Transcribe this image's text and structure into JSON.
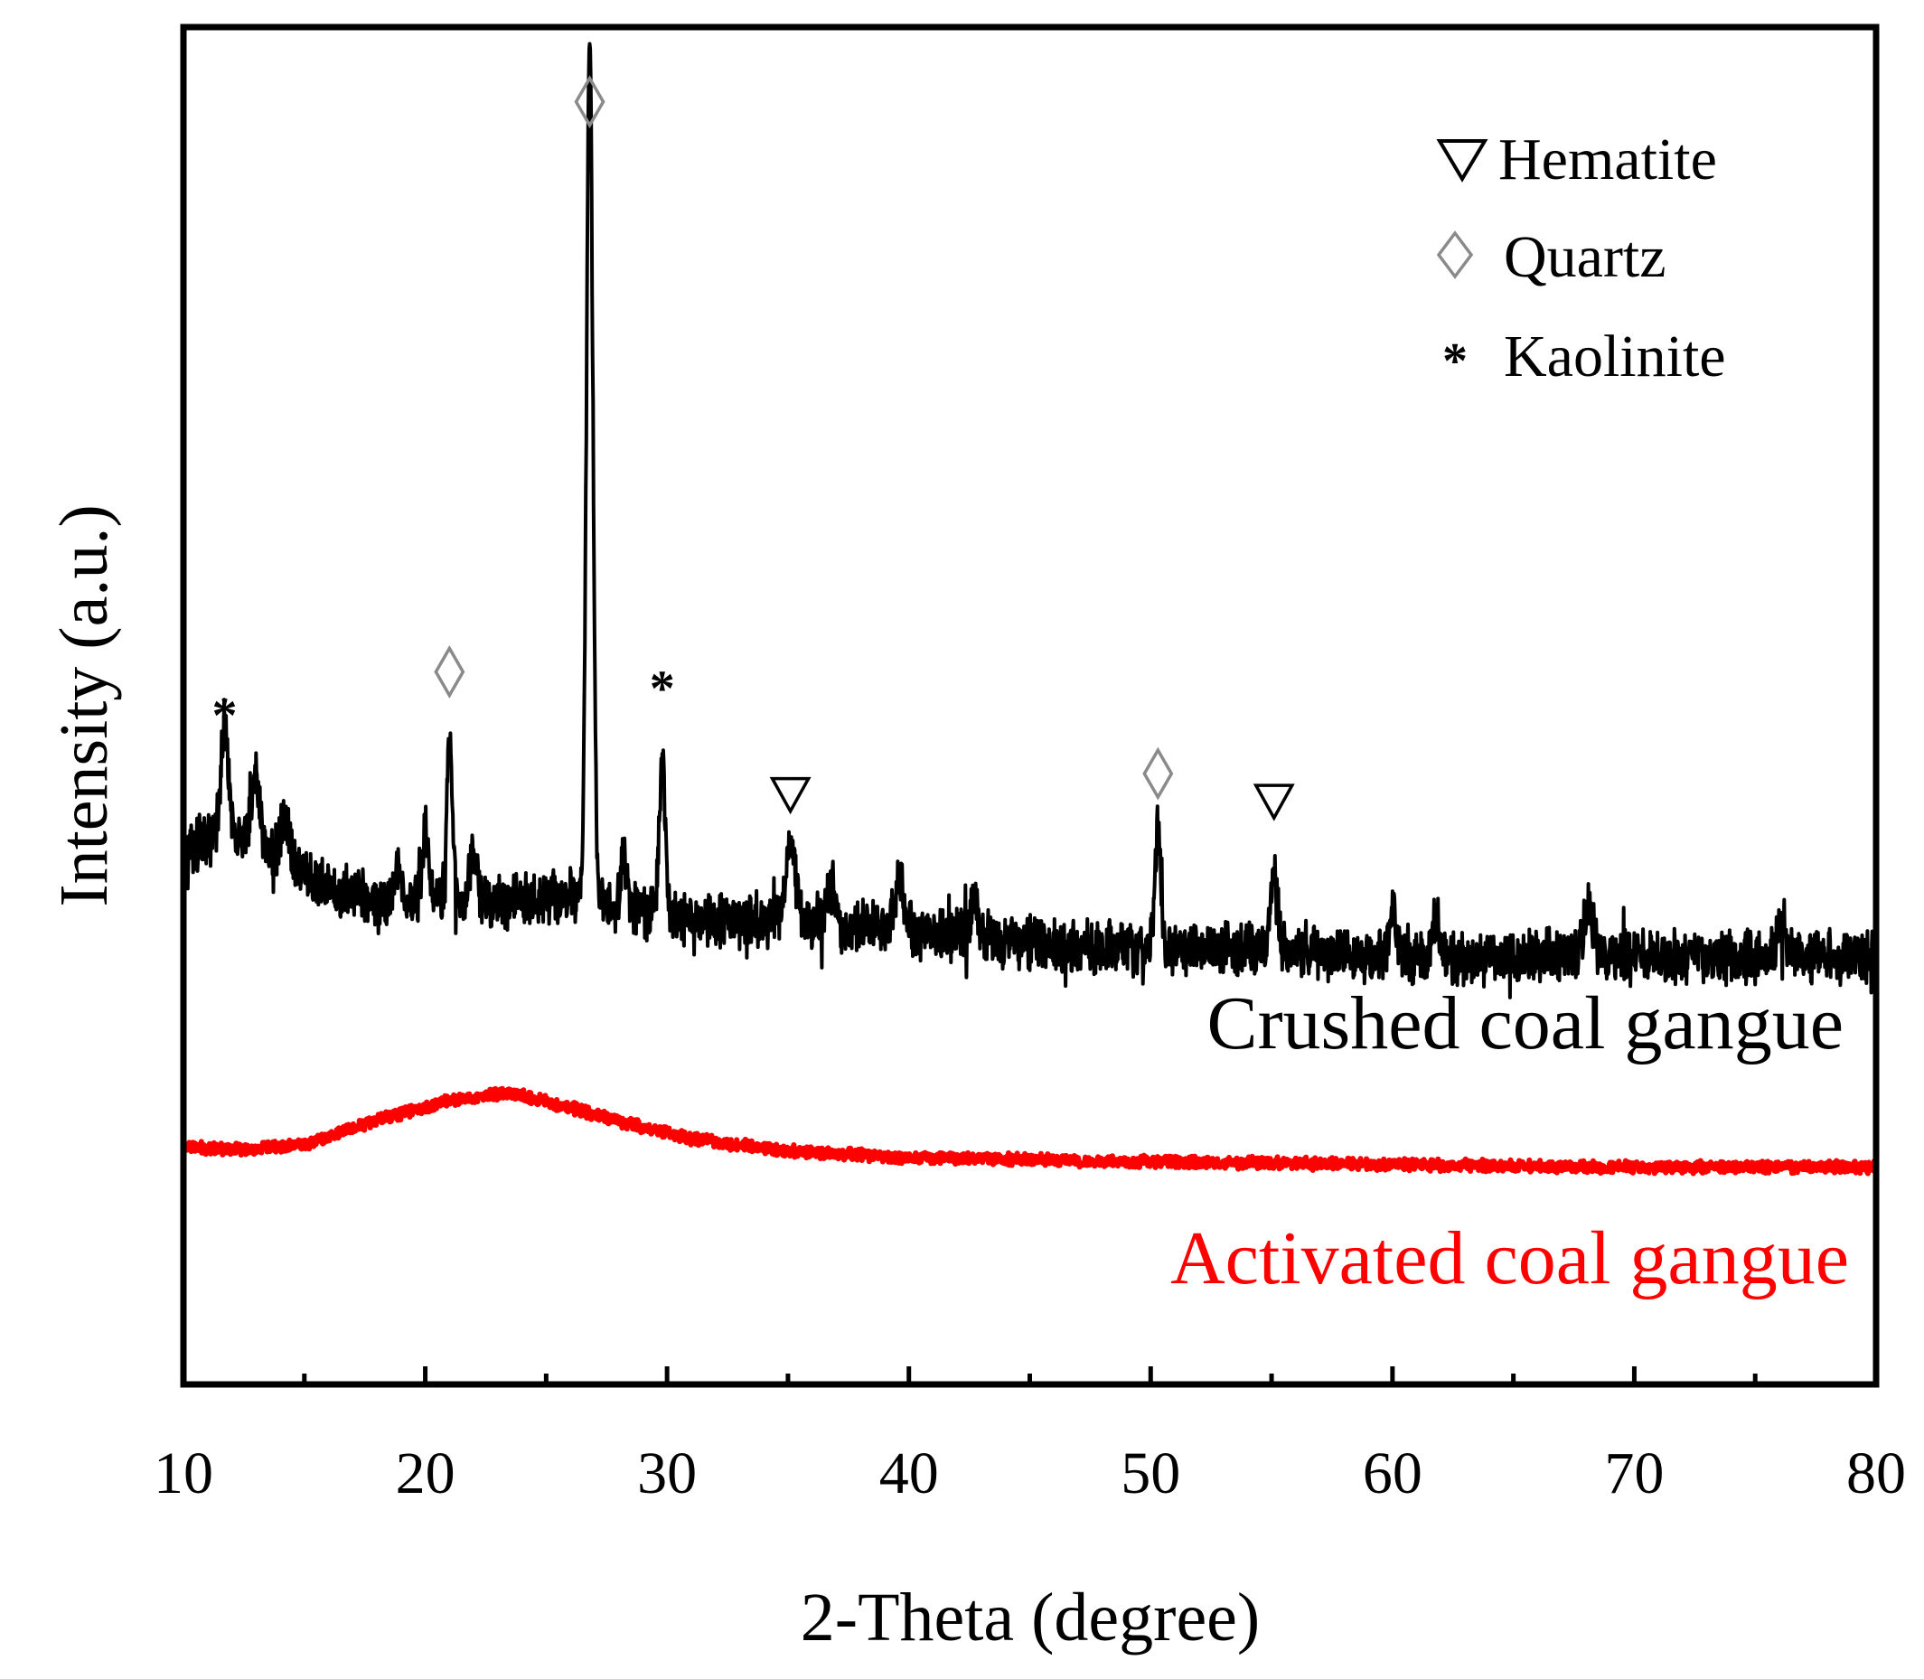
{
  "chart_data": {
    "type": "line",
    "title": "",
    "xlabel": "2-Theta (degree)",
    "ylabel": "Intensity (a.u.)",
    "xlim": [
      10,
      80
    ],
    "ylim": [
      0,
      100
    ],
    "xticks": [
      10,
      20,
      30,
      40,
      50,
      60,
      70,
      80
    ],
    "yticks": [],
    "grid": false,
    "legend_position": "top-right",
    "legend": [
      {
        "symbol": "hematite",
        "label": "Hematite"
      },
      {
        "symbol": "quartz",
        "label": "Quartz"
      },
      {
        "symbol": "kaolinite",
        "label": "Kaolinite"
      }
    ],
    "series": [
      {
        "name": "Crushed coal gangue",
        "label": "Crushed coal gangue",
        "color": "#000000",
        "baseline": [
          [
            10,
            39.5
          ],
          [
            12,
            40.5
          ],
          [
            14,
            38.5
          ],
          [
            16,
            36.5
          ],
          [
            18,
            35.5
          ],
          [
            22,
            35.5
          ],
          [
            26,
            36
          ],
          [
            30,
            34.5
          ],
          [
            35,
            34
          ],
          [
            40,
            33.5
          ],
          [
            45,
            32.5
          ],
          [
            50,
            32
          ],
          [
            55,
            32
          ],
          [
            60,
            31.5
          ],
          [
            70,
            31.5
          ],
          [
            80,
            31.5
          ]
        ],
        "noise_amplitude": 1.6,
        "peaks": [
          {
            "x": 11.7,
            "height": 8.5,
            "width": 0.15
          },
          {
            "x": 13.0,
            "height": 5.0,
            "width": 0.18
          },
          {
            "x": 14.2,
            "height": 3.5,
            "width": 0.2
          },
          {
            "x": 18.9,
            "height": 3.0,
            "width": 0.12
          },
          {
            "x": 20.0,
            "height": 5.0,
            "width": 0.12
          },
          {
            "x": 21.0,
            "height": 11.5,
            "width": 0.12
          },
          {
            "x": 22.0,
            "height": 4.0,
            "width": 0.15
          },
          {
            "x": 26.8,
            "height": 63.0,
            "width": 0.13
          },
          {
            "x": 28.2,
            "height": 4.0,
            "width": 0.12
          },
          {
            "x": 29.8,
            "height": 12.0,
            "width": 0.12
          },
          {
            "x": 35.1,
            "height": 6.0,
            "width": 0.2
          },
          {
            "x": 36.8,
            "height": 3.5,
            "width": 0.15
          },
          {
            "x": 39.6,
            "height": 3.5,
            "width": 0.2
          },
          {
            "x": 42.7,
            "height": 2.5,
            "width": 0.15
          },
          {
            "x": 50.3,
            "height": 9.0,
            "width": 0.12
          },
          {
            "x": 55.1,
            "height": 5.5,
            "width": 0.15
          },
          {
            "x": 60.0,
            "height": 3.5,
            "width": 0.15
          },
          {
            "x": 61.8,
            "height": 3.0,
            "width": 0.15
          },
          {
            "x": 68.1,
            "height": 4.0,
            "width": 0.2
          },
          {
            "x": 76.0,
            "height": 2.0,
            "width": 0.15
          }
        ]
      },
      {
        "name": "Activated coal gangue",
        "label": "Activated coal gangue",
        "color": "#ff0000",
        "baseline": [
          [
            10,
            17.5
          ],
          [
            13,
            17.3
          ],
          [
            15,
            17.7
          ],
          [
            18,
            19.5
          ],
          [
            21,
            20.9
          ],
          [
            23.5,
            21.5
          ],
          [
            26,
            20.4
          ],
          [
            28,
            19.4
          ],
          [
            31,
            18.1
          ],
          [
            35,
            17.2
          ],
          [
            40,
            16.7
          ],
          [
            50,
            16.4
          ],
          [
            60,
            16.2
          ],
          [
            70,
            16.0
          ],
          [
            80,
            16.0
          ]
        ],
        "noise_amplitude": 0.35,
        "peaks": []
      }
    ],
    "annotations": [
      {
        "phase": "kaolinite",
        "symbol": "*",
        "x": 11.7,
        "y": 49.5
      },
      {
        "phase": "quartz",
        "symbol": "◇",
        "x": 21.0,
        "y": 52.5
      },
      {
        "phase": "quartz",
        "symbol": "◇",
        "x": 26.8,
        "y": 94.5
      },
      {
        "phase": "kaolinite",
        "symbol": "*",
        "x": 29.8,
        "y": 51.5
      },
      {
        "phase": "hematite",
        "symbol": "▽",
        "x": 35.1,
        "y": 43.5
      },
      {
        "phase": "quartz",
        "symbol": "◇",
        "x": 50.3,
        "y": 45.0
      },
      {
        "phase": "hematite",
        "symbol": "▽",
        "x": 55.1,
        "y": 43.0
      }
    ]
  }
}
